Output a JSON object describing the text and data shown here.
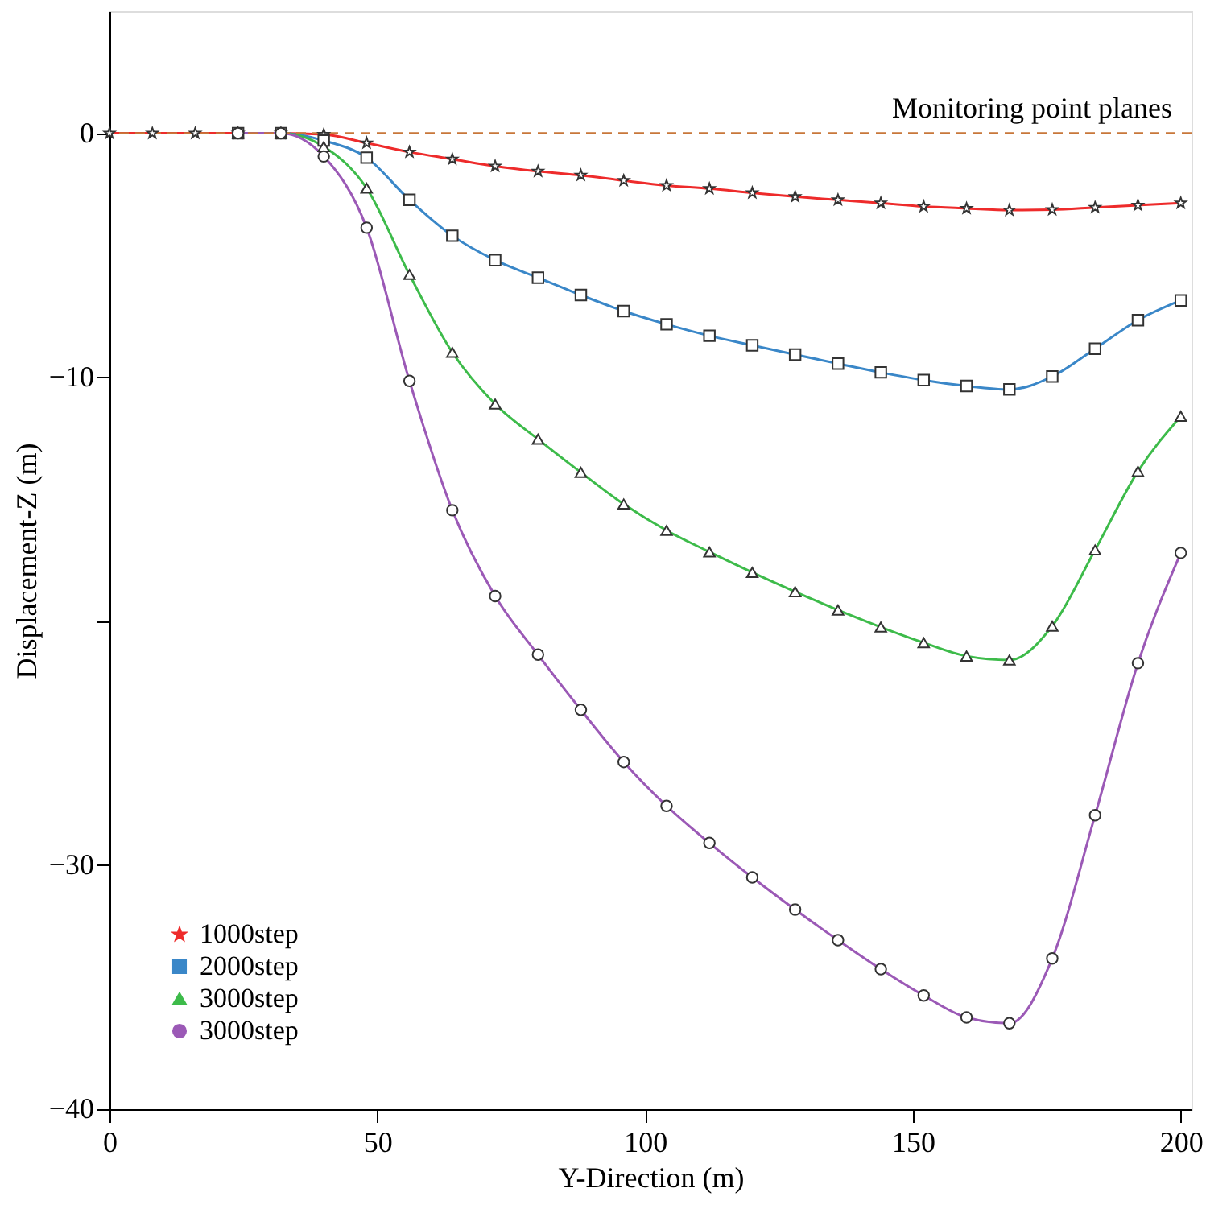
{
  "chart_data": {
    "type": "line",
    "xlabel": "Y-Direction (m)",
    "ylabel": "Displacement-Z (m)",
    "x": [
      0,
      8,
      16,
      24,
      32,
      40,
      48,
      56,
      64,
      72,
      80,
      88,
      96,
      104,
      112,
      120,
      128,
      136,
      144,
      152,
      160,
      168,
      176,
      184,
      192,
      200
    ],
    "series": [
      {
        "name": "1000step",
        "color": "#ee2b2b",
        "marker": "star",
        "values": [
          0,
          0,
          0,
          0,
          0,
          -0.05,
          -0.4,
          -0.77,
          -1.06,
          -1.35,
          -1.56,
          -1.72,
          -1.94,
          -2.14,
          -2.27,
          -2.44,
          -2.6,
          -2.73,
          -2.86,
          -3.0,
          -3.08,
          -3.15,
          -3.13,
          -3.04,
          -2.95,
          -2.86
        ]
      },
      {
        "name": "2000step",
        "color": "#3a87c8",
        "marker": "square",
        "values": [
          null,
          null,
          null,
          0,
          0,
          -0.3,
          -1.0,
          -2.73,
          -4.2,
          -5.2,
          -5.92,
          -6.63,
          -7.29,
          -7.83,
          -8.3,
          -8.69,
          -9.07,
          -9.44,
          -9.8,
          -10.12,
          -10.36,
          -10.5,
          -9.97,
          -8.83,
          -7.66,
          -6.85
        ]
      },
      {
        "name": "3000step",
        "color": "#3dbb4a",
        "marker": "triangle",
        "values": [
          null,
          null,
          null,
          0,
          0,
          -0.55,
          -2.25,
          -5.79,
          -8.98,
          -11.1,
          -12.54,
          -13.9,
          -15.2,
          -16.28,
          -17.16,
          -18.0,
          -18.79,
          -19.54,
          -20.24,
          -20.88,
          -21.43,
          -21.59,
          -20.2,
          -17.08,
          -13.86,
          -11.6
        ]
      },
      {
        "name": "3000step",
        "color": "#9b59b6",
        "marker": "circle",
        "values": [
          null,
          null,
          null,
          0,
          0,
          -0.95,
          -3.87,
          -10.15,
          -15.45,
          -18.97,
          -21.37,
          -23.63,
          -25.77,
          -27.57,
          -29.09,
          -30.5,
          -31.82,
          -33.07,
          -34.26,
          -35.34,
          -36.24,
          -36.48,
          -33.82,
          -27.95,
          -21.72,
          -17.2
        ]
      }
    ],
    "xlim": [
      0,
      202
    ],
    "xticks": [
      0,
      50,
      100,
      150,
      200
    ],
    "ylim": [
      -40,
      5
    ],
    "yticks": [
      0,
      -10,
      {
        "value": -20,
        "label": null
      },
      -30,
      -40
    ],
    "ref_lines": [
      {
        "axis": "y",
        "value": 0,
        "label": "Monitoring point planes",
        "color": "#c8773a",
        "line_style": "dashed"
      }
    ],
    "legend": "bottom left",
    "grid": false,
    "line_style": "solid"
  }
}
